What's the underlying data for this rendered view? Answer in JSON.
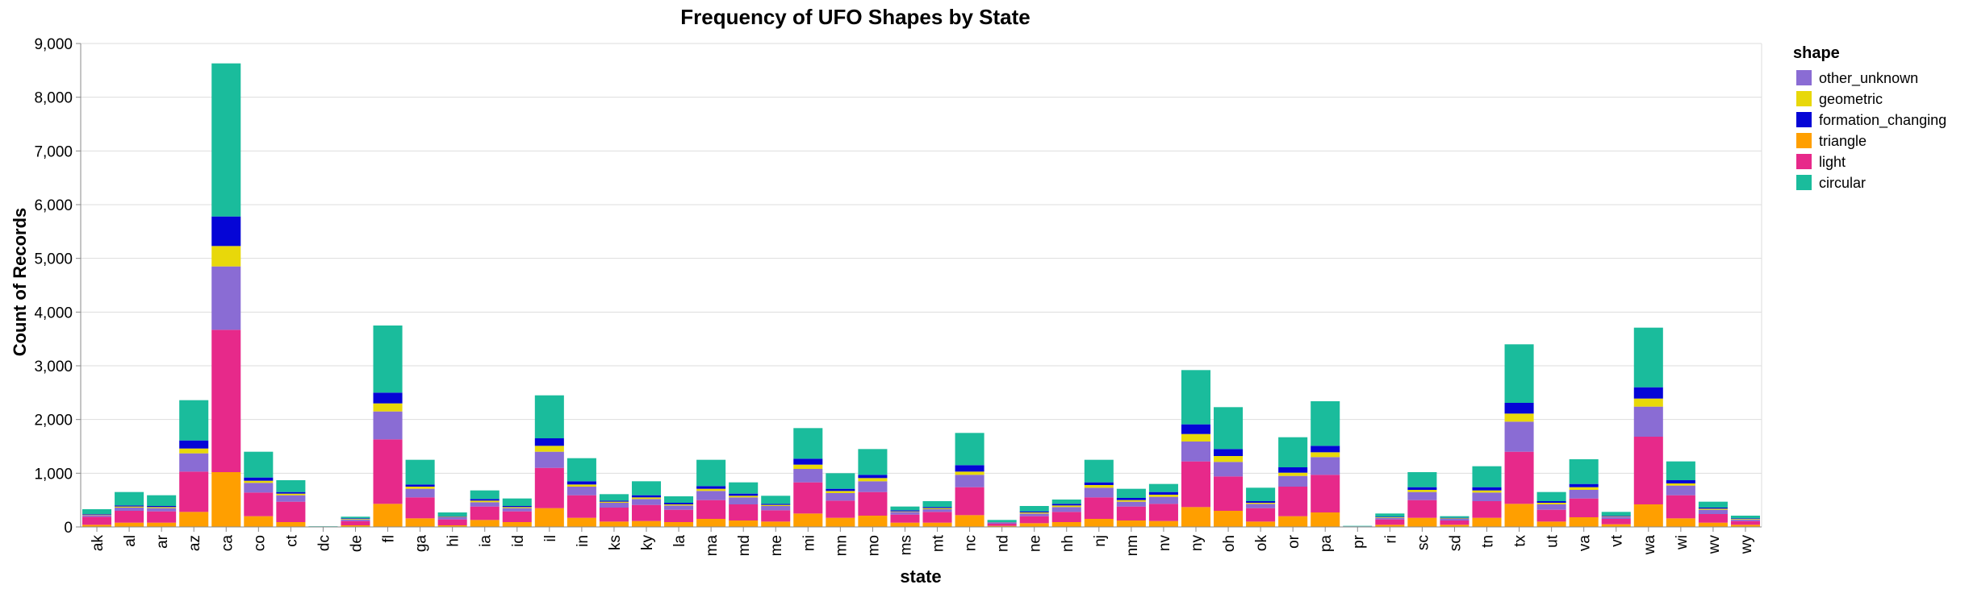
{
  "chart_data": {
    "type": "bar",
    "stacked": true,
    "title": "Frequency of UFO Shapes by State",
    "xlabel": "state",
    "ylabel": "Count of Records",
    "ylim": [
      0,
      9000
    ],
    "yticks": [
      0,
      1000,
      2000,
      3000,
      4000,
      5000,
      6000,
      7000,
      8000,
      9000
    ],
    "ytick_labels": [
      "0",
      "1,000",
      "2,000",
      "3,000",
      "4,000",
      "5,000",
      "6,000",
      "7,000",
      "8,000",
      "9,000"
    ],
    "grid": true,
    "legend_title": "shape",
    "legend_position": "right",
    "categories": [
      "ak",
      "al",
      "ar",
      "az",
      "ca",
      "co",
      "ct",
      "dc",
      "de",
      "fl",
      "ga",
      "hi",
      "ia",
      "id",
      "il",
      "in",
      "ks",
      "ky",
      "la",
      "ma",
      "md",
      "me",
      "mi",
      "mn",
      "mo",
      "ms",
      "mt",
      "nc",
      "nd",
      "ne",
      "nh",
      "nj",
      "nm",
      "nv",
      "ny",
      "oh",
      "ok",
      "or",
      "pa",
      "pr",
      "ri",
      "sc",
      "sd",
      "tn",
      "tx",
      "ut",
      "va",
      "vt",
      "wa",
      "wi",
      "wv",
      "wy"
    ],
    "series": [
      {
        "name": "triangle",
        "color": "#ff9f00",
        "values": [
          40,
          80,
          80,
          280,
          1020,
          200,
          90,
          2,
          30,
          430,
          160,
          30,
          130,
          90,
          350,
          170,
          100,
          110,
          90,
          150,
          120,
          100,
          250,
          170,
          210,
          80,
          80,
          220,
          20,
          70,
          90,
          150,
          120,
          110,
          370,
          300,
          100,
          200,
          270,
          3,
          40,
          170,
          40,
          170,
          430,
          100,
          180,
          50,
          420,
          160,
          80,
          40
        ]
      },
      {
        "name": "light",
        "color": "#e7298a",
        "values": [
          150,
          220,
          210,
          750,
          2650,
          440,
          380,
          4,
          80,
          1200,
          390,
          110,
          250,
          200,
          750,
          420,
          260,
          300,
          230,
          350,
          300,
          210,
          580,
          320,
          440,
          150,
          200,
          520,
          40,
          130,
          190,
          400,
          260,
          320,
          850,
          640,
          250,
          550,
          700,
          6,
          100,
          330,
          80,
          310,
          970,
          220,
          350,
          100,
          1260,
          430,
          160,
          70
        ]
      },
      {
        "name": "other_unknown",
        "color": "#8a6cd4",
        "values": [
          30,
          60,
          60,
          340,
          1180,
          180,
          120,
          1,
          30,
          520,
          160,
          40,
          80,
          60,
          300,
          160,
          90,
          110,
          80,
          170,
          130,
          80,
          250,
          140,
          200,
          50,
          50,
          230,
          20,
          50,
          90,
          180,
          90,
          130,
          370,
          270,
          80,
          200,
          330,
          2,
          30,
          150,
          30,
          160,
          560,
          100,
          160,
          40,
          560,
          180,
          80,
          30
        ]
      },
      {
        "name": "geometric",
        "color": "#e8d80a",
        "values": [
          10,
          20,
          20,
          90,
          380,
          40,
          30,
          0,
          10,
          150,
          40,
          10,
          30,
          20,
          110,
          40,
          20,
          30,
          20,
          40,
          30,
          20,
          80,
          40,
          60,
          10,
          20,
          60,
          5,
          20,
          30,
          50,
          30,
          40,
          140,
          110,
          20,
          60,
          90,
          0,
          10,
          40,
          10,
          40,
          150,
          30,
          50,
          10,
          150,
          40,
          20,
          10
        ]
      },
      {
        "name": "formation_changing",
        "color": "#0505d6",
        "values": [
          10,
          20,
          20,
          150,
          550,
          60,
          30,
          0,
          10,
          200,
          40,
          10,
          30,
          20,
          140,
          60,
          20,
          40,
          30,
          50,
          40,
          20,
          110,
          40,
          60,
          20,
          20,
          120,
          5,
          20,
          30,
          50,
          40,
          50,
          180,
          130,
          30,
          100,
          120,
          0,
          10,
          50,
          10,
          60,
          200,
          30,
          60,
          10,
          210,
          60,
          20,
          10
        ]
      },
      {
        "name": "circular",
        "color": "#1abc9c",
        "values": [
          90,
          250,
          200,
          750,
          2850,
          480,
          220,
          5,
          30,
          1250,
          460,
          70,
          160,
          140,
          800,
          430,
          120,
          260,
          120,
          490,
          210,
          150,
          570,
          290,
          480,
          70,
          110,
          600,
          40,
          100,
          80,
          420,
          170,
          150,
          1010,
          780,
          250,
          560,
          830,
          9,
          60,
          280,
          30,
          390,
          1090,
          170,
          460,
          70,
          1110,
          350,
          110,
          50
        ]
      }
    ],
    "legend_order": [
      "other_unknown",
      "geometric",
      "formation_changing",
      "triangle",
      "light",
      "circular"
    ]
  }
}
